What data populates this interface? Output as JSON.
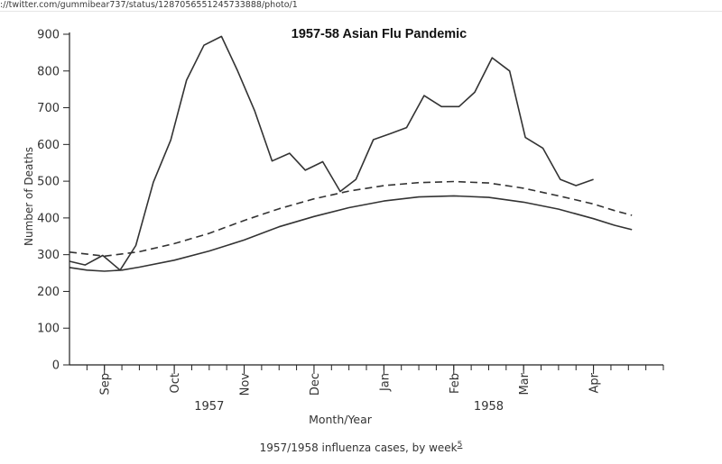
{
  "browser": {
    "url": "://twitter.com/gummibear737/status/1287056551245733888/photo/1"
  },
  "caption": {
    "text": "1957/1958 influenza cases, by week",
    "footnote": "5"
  },
  "chart_data": {
    "type": "line",
    "title": "1957-58 Asian Flu Pandemic",
    "xlabel": "Month/Year",
    "ylabel": "Number of Deaths",
    "ylim": [
      0,
      900
    ],
    "yticks": [
      0,
      100,
      200,
      300,
      400,
      500,
      600,
      700,
      800,
      900
    ],
    "grid": false,
    "legend": "none",
    "x_unit": "week",
    "xlim": [
      0,
      34
    ],
    "month_ticks": [
      {
        "label": "Sep",
        "week": 2
      },
      {
        "label": "Oct",
        "week": 6
      },
      {
        "label": "Nov",
        "week": 10
      },
      {
        "label": "Dec",
        "week": 14
      },
      {
        "label": "Jan",
        "week": 18
      },
      {
        "label": "Feb",
        "week": 22
      },
      {
        "label": "Mar",
        "week": 26
      },
      {
        "label": "Apr",
        "week": 30
      }
    ],
    "year_labels": [
      {
        "label": "1957",
        "week": 8
      },
      {
        "label": "1958",
        "week": 24
      }
    ],
    "series": [
      {
        "style": "solid",
        "color": "#333333",
        "values": [
          [
            0.0,
            282
          ],
          [
            0.9,
            272
          ],
          [
            1.9,
            298
          ],
          [
            2.9,
            258
          ],
          [
            3.8,
            325
          ],
          [
            4.8,
            497
          ],
          [
            5.8,
            612
          ],
          [
            6.7,
            775
          ],
          [
            7.7,
            870
          ],
          [
            8.7,
            894
          ],
          [
            9.6,
            803
          ],
          [
            10.6,
            692
          ],
          [
            11.6,
            555
          ],
          [
            12.6,
            576
          ],
          [
            13.5,
            530
          ],
          [
            14.5,
            553
          ],
          [
            15.5,
            472
          ],
          [
            16.4,
            505
          ],
          [
            17.4,
            613
          ],
          [
            18.4,
            630
          ],
          [
            19.3,
            646
          ],
          [
            20.3,
            733
          ],
          [
            21.3,
            703
          ],
          [
            22.3,
            703
          ],
          [
            23.2,
            742
          ],
          [
            24.2,
            836
          ],
          [
            25.2,
            800
          ],
          [
            26.1,
            619
          ],
          [
            27.1,
            590
          ],
          [
            28.1,
            505
          ],
          [
            29.0,
            488
          ],
          [
            30.0,
            505
          ]
        ]
      },
      {
        "style": "dashed",
        "color": "#333333",
        "values": [
          [
            0.0,
            307
          ],
          [
            2.0,
            296
          ],
          [
            4.0,
            308
          ],
          [
            6.0,
            330
          ],
          [
            8.0,
            358
          ],
          [
            10.0,
            393
          ],
          [
            12.0,
            425
          ],
          [
            14.0,
            452
          ],
          [
            16.0,
            473
          ],
          [
            18.0,
            488
          ],
          [
            20.0,
            496
          ],
          [
            22.0,
            499
          ],
          [
            24.0,
            495
          ],
          [
            26.0,
            481
          ],
          [
            28.0,
            460
          ],
          [
            30.0,
            438
          ],
          [
            31.2,
            420
          ],
          [
            32.2,
            407
          ]
        ]
      },
      {
        "style": "solid",
        "color": "#333333",
        "values": [
          [
            0.0,
            265
          ],
          [
            1.0,
            258
          ],
          [
            2.0,
            255
          ],
          [
            3.0,
            258
          ],
          [
            4.0,
            266
          ],
          [
            6.0,
            285
          ],
          [
            8.0,
            310
          ],
          [
            10.0,
            340
          ],
          [
            12.0,
            376
          ],
          [
            14.0,
            404
          ],
          [
            16.0,
            428
          ],
          [
            18.0,
            446
          ],
          [
            20.0,
            457
          ],
          [
            22.0,
            460
          ],
          [
            24.0,
            456
          ],
          [
            26.0,
            443
          ],
          [
            28.0,
            424
          ],
          [
            30.0,
            398
          ],
          [
            31.2,
            380
          ],
          [
            32.2,
            368
          ]
        ]
      }
    ]
  }
}
